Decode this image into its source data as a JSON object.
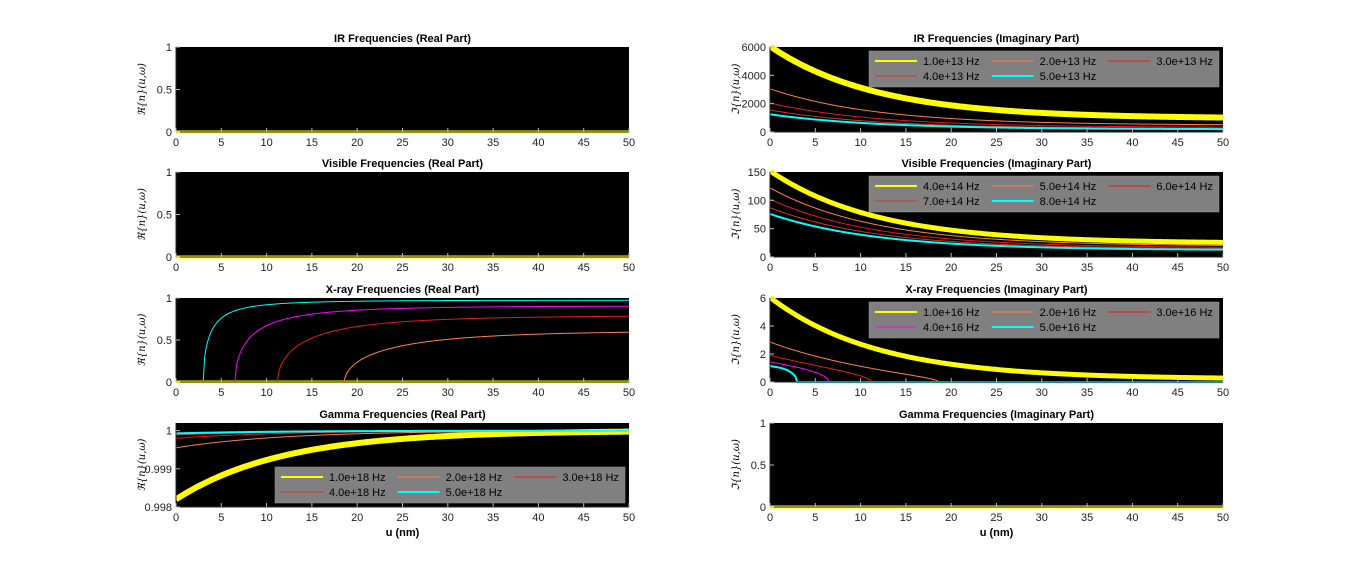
{
  "figure": {
    "xlabel": "u (nm)",
    "real_ylabel": "ℜ{n}(u,ω)",
    "imag_ylabel": "ℑ{n}(u,ω)"
  },
  "chart_data": [
    {
      "id": "ir_real",
      "type": "line",
      "title": "IR Frequencies (Real Part)",
      "xlim": [
        0,
        50
      ],
      "ylim": [
        0,
        1
      ],
      "xticks": [
        "0",
        "5",
        "10",
        "15",
        "20",
        "25",
        "30",
        "35",
        "40",
        "45",
        "50"
      ],
      "yticks": [
        {
          "v": 0,
          "label": "0"
        },
        {
          "v": 0.5,
          "label": "0.5"
        },
        {
          "v": 1,
          "label": "1"
        }
      ],
      "ylabel": "ℜ{n}(u,ω)",
      "xlabel": "",
      "series": [
        {
          "name": "1.0e+13 Hz",
          "color": "#ffff00",
          "width": 3,
          "model": "const",
          "params": {
            "c": 0
          }
        }
      ]
    },
    {
      "id": "ir_imag",
      "type": "line",
      "title": "IR Frequencies (Imaginary Part)",
      "xlim": [
        0,
        50
      ],
      "ylim": [
        0,
        6000
      ],
      "xticks": [
        "0",
        "5",
        "10",
        "15",
        "20",
        "25",
        "30",
        "35",
        "40",
        "45",
        "50"
      ],
      "yticks": [
        {
          "v": 0,
          "label": "0"
        },
        {
          "v": 2000,
          "label": "2000"
        },
        {
          "v": 4000,
          "label": "4000"
        },
        {
          "v": 6000,
          "label": "6000"
        }
      ],
      "ylabel": "ℑ{n}(u,ω)",
      "xlabel": "",
      "legend": {
        "position": "top-right",
        "columns": 3
      },
      "series": [
        {
          "name": "1.0e+13 Hz",
          "color": "#ffff00",
          "width": 6,
          "model": "exp",
          "params": {
            "y0": 6050,
            "yinf": 950,
            "k": 0.085
          }
        },
        {
          "name": "2.0e+13 Hz",
          "color": "#ff7f50",
          "width": 1,
          "model": "exp",
          "params": {
            "y0": 3050,
            "yinf": 480,
            "k": 0.085
          }
        },
        {
          "name": "3.0e+13 Hz",
          "color": "#e41a1c",
          "width": 1,
          "model": "exp",
          "params": {
            "y0": 2050,
            "yinf": 320,
            "k": 0.085
          }
        },
        {
          "name": "4.0e+13 Hz",
          "color": "#c0392b",
          "width": 1,
          "model": "exp",
          "params": {
            "y0": 1550,
            "yinf": 240,
            "k": 0.085
          }
        },
        {
          "name": "5.0e+13 Hz",
          "color": "#00ffff",
          "width": 2,
          "model": "exp",
          "params": {
            "y0": 1250,
            "yinf": 190,
            "k": 0.085
          }
        }
      ]
    },
    {
      "id": "vis_real",
      "type": "line",
      "title": "Visible Frequencies (Real Part)",
      "xlim": [
        0,
        50
      ],
      "ylim": [
        0,
        1
      ],
      "xticks": [
        "0",
        "5",
        "10",
        "15",
        "20",
        "25",
        "30",
        "35",
        "40",
        "45",
        "50"
      ],
      "yticks": [
        {
          "v": 0,
          "label": "0"
        },
        {
          "v": 0.5,
          "label": "0.5"
        },
        {
          "v": 1,
          "label": "1"
        }
      ],
      "ylabel": "ℜ{n}(u,ω)",
      "xlabel": "",
      "series": [
        {
          "name": "4.0e+14 Hz",
          "color": "#ffff00",
          "width": 3,
          "model": "const",
          "params": {
            "c": 0
          }
        }
      ]
    },
    {
      "id": "vis_imag",
      "type": "line",
      "title": "Visible Frequencies (Imaginary Part)",
      "xlim": [
        0,
        50
      ],
      "ylim": [
        0,
        150
      ],
      "xticks": [
        "0",
        "5",
        "10",
        "15",
        "20",
        "25",
        "30",
        "35",
        "40",
        "45",
        "50"
      ],
      "yticks": [
        {
          "v": 0,
          "label": "0"
        },
        {
          "v": 50,
          "label": "50"
        },
        {
          "v": 100,
          "label": "100"
        },
        {
          "v": 150,
          "label": "150"
        }
      ],
      "ylabel": "ℑ{n}(u,ω)",
      "xlabel": "",
      "legend": {
        "position": "top-right",
        "columns": 3
      },
      "series": [
        {
          "name": "4.0e+14 Hz",
          "color": "#ffff00",
          "width": 5,
          "model": "exp",
          "params": {
            "y0": 152,
            "yinf": 24,
            "k": 0.085
          }
        },
        {
          "name": "5.0e+14 Hz",
          "color": "#ff7f50",
          "width": 1,
          "model": "exp",
          "params": {
            "y0": 122,
            "yinf": 19,
            "k": 0.085
          }
        },
        {
          "name": "6.0e+14 Hz",
          "color": "#e41a1c",
          "width": 1,
          "model": "exp",
          "params": {
            "y0": 102,
            "yinf": 16,
            "k": 0.085
          }
        },
        {
          "name": "7.0e+14 Hz",
          "color": "#c0392b",
          "width": 1,
          "model": "exp",
          "params": {
            "y0": 87,
            "yinf": 14,
            "k": 0.085
          }
        },
        {
          "name": "8.0e+14 Hz",
          "color": "#00ffff",
          "width": 2,
          "model": "exp",
          "params": {
            "y0": 76,
            "yinf": 12,
            "k": 0.085
          }
        }
      ]
    },
    {
      "id": "xray_real",
      "type": "line",
      "title": "X-ray Frequencies (Real Part)",
      "xlim": [
        0,
        50
      ],
      "ylim": [
        0,
        1
      ],
      "xticks": [
        "0",
        "5",
        "10",
        "15",
        "20",
        "25",
        "30",
        "35",
        "40",
        "45",
        "50"
      ],
      "yticks": [
        {
          "v": 0,
          "label": "0"
        },
        {
          "v": 0.5,
          "label": "0.5"
        },
        {
          "v": 1,
          "label": "1"
        }
      ],
      "ylabel": "ℜ{n}(u,ω)",
      "xlabel": "",
      "series": [
        {
          "name": "1.0e+16 Hz",
          "color": "#ffff00",
          "width": 3,
          "model": "const",
          "params": {
            "c": 0
          }
        },
        {
          "name": "2.0e+16 Hz",
          "color": "#ff7f50",
          "width": 1,
          "model": "onset",
          "params": {
            "u0": 18.6,
            "k": 0.085
          }
        },
        {
          "name": "3.0e+16 Hz",
          "color": "#e41a1c",
          "width": 1,
          "model": "onset",
          "params": {
            "u0": 11.2,
            "k": 0.085
          }
        },
        {
          "name": "4.0e+16 Hz",
          "color": "#ff00ff",
          "width": 1,
          "model": "onset",
          "params": {
            "u0": 6.5,
            "k": 0.085
          }
        },
        {
          "name": "5.0e+16 Hz",
          "color": "#00ffff",
          "width": 1,
          "model": "onset",
          "params": {
            "u0": 3.0,
            "k": 0.085
          }
        }
      ]
    },
    {
      "id": "xray_imag",
      "type": "line",
      "title": "X-ray Frequencies (Imaginary Part)",
      "xlim": [
        0,
        50
      ],
      "ylim": [
        0,
        6
      ],
      "xticks": [
        "0",
        "5",
        "10",
        "15",
        "20",
        "25",
        "30",
        "35",
        "40",
        "45",
        "50"
      ],
      "yticks": [
        {
          "v": 0,
          "label": "0"
        },
        {
          "v": 2,
          "label": "2"
        },
        {
          "v": 4,
          "label": "4"
        },
        {
          "v": 6,
          "label": "6"
        }
      ],
      "ylabel": "ℑ{n}(u,ω)",
      "xlabel": "",
      "legend": {
        "position": "top-right",
        "columns": 3
      },
      "series": [
        {
          "name": "1.0e+16 Hz",
          "color": "#ffff00",
          "width": 5,
          "model": "cut",
          "params": {
            "u0": 56,
            "k": 0.085
          }
        },
        {
          "name": "2.0e+16 Hz",
          "color": "#ff7f50",
          "width": 1,
          "model": "cut",
          "params": {
            "u0": 18.6,
            "k": 0.085
          }
        },
        {
          "name": "3.0e+16 Hz",
          "color": "#e41a1c",
          "width": 1,
          "model": "cut",
          "params": {
            "u0": 11.2,
            "k": 0.085
          }
        },
        {
          "name": "4.0e+16 Hz",
          "color": "#ff00ff",
          "width": 1,
          "model": "cut",
          "params": {
            "u0": 6.5,
            "k": 0.085
          }
        },
        {
          "name": "5.0e+16 Hz",
          "color": "#00ffff",
          "width": 2,
          "model": "cut",
          "params": {
            "u0": 3.0,
            "k": 0.085
          }
        }
      ]
    },
    {
      "id": "gamma_real",
      "type": "line",
      "title": "Gamma Frequencies (Real Part)",
      "xlim": [
        0,
        50
      ],
      "ylim": [
        0.998,
        1.0002
      ],
      "xticks": [
        "0",
        "5",
        "10",
        "15",
        "20",
        "25",
        "30",
        "35",
        "40",
        "45",
        "50"
      ],
      "yticks": [
        {
          "v": 0.998,
          "label": "0.998"
        },
        {
          "v": 0.999,
          "label": "0.999"
        },
        {
          "v": 1,
          "label": "1"
        }
      ],
      "ylabel": "ℜ{n}(u,ω)",
      "xlabel": "u (nm)",
      "legend": {
        "position": "bottom-right",
        "columns": 3
      },
      "series": [
        {
          "name": "1.0e+18 Hz",
          "color": "#ffff00",
          "width": 6,
          "model": "gamma",
          "params": {
            "d": 0.0018,
            "k": 0.085
          }
        },
        {
          "name": "2.0e+18 Hz",
          "color": "#ff7f50",
          "width": 1,
          "model": "gamma",
          "params": {
            "d": 0.00045,
            "k": 0.085
          }
        },
        {
          "name": "3.0e+18 Hz",
          "color": "#e41a1c",
          "width": 1,
          "model": "gamma",
          "params": {
            "d": 0.0002,
            "k": 0.085
          }
        },
        {
          "name": "4.0e+18 Hz",
          "color": "#c0392b",
          "width": 1,
          "model": "gamma",
          "params": {
            "d": 0.000113,
            "k": 0.085
          }
        },
        {
          "name": "5.0e+18 Hz",
          "color": "#00ffff",
          "width": 2,
          "model": "gamma",
          "params": {
            "d": 7.2e-05,
            "k": 0.085
          }
        }
      ]
    },
    {
      "id": "gamma_imag",
      "type": "line",
      "title": "Gamma Frequencies (Imaginary Part)",
      "xlim": [
        0,
        50
      ],
      "ylim": [
        0,
        1
      ],
      "xticks": [
        "0",
        "5",
        "10",
        "15",
        "20",
        "25",
        "30",
        "35",
        "40",
        "45",
        "50"
      ],
      "yticks": [
        {
          "v": 0,
          "label": "0"
        },
        {
          "v": 0.5,
          "label": "0.5"
        },
        {
          "v": 1,
          "label": "1"
        }
      ],
      "ylabel": "ℑ{n}(u,ω)",
      "xlabel": "u (nm)",
      "series": [
        {
          "name": "1.0e+18 Hz",
          "color": "#ffff00",
          "width": 3,
          "model": "const",
          "params": {
            "c": 0
          }
        }
      ]
    }
  ]
}
